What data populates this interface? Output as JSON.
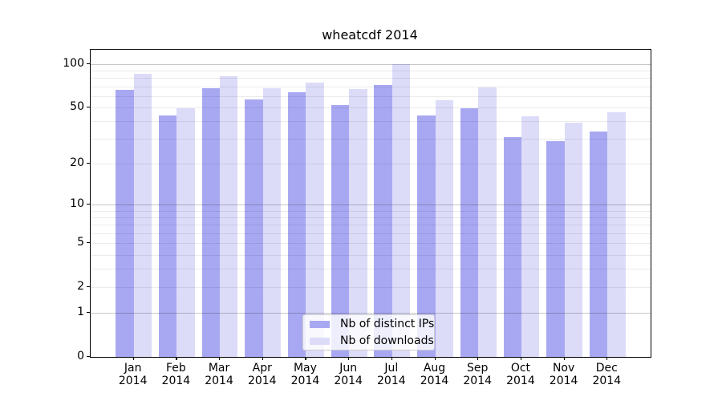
{
  "chart_data": {
    "type": "bar",
    "title": "wheatcdf 2014",
    "categories": [
      "Jan",
      "Feb",
      "Mar",
      "Apr",
      "May",
      "Jun",
      "Jul",
      "Aug",
      "Sep",
      "Oct",
      "Nov",
      "Dec"
    ],
    "year": "2014",
    "series": [
      {
        "name": "Nb of distinct IPs",
        "color": "#a8a8f2",
        "values": [
          66,
          44,
          68,
          57,
          64,
          52,
          71,
          44,
          49,
          31,
          29,
          34
        ]
      },
      {
        "name": "Nb of downloads",
        "color": "#dcdcf9",
        "values": [
          85,
          49,
          82,
          68,
          74,
          67,
          100,
          56,
          69,
          43,
          39,
          46
        ]
      }
    ],
    "xlabel": "",
    "ylabel": "",
    "yscale": "log1p",
    "ylim": [
      0,
      124
    ],
    "yticks": [
      0,
      1,
      2,
      5,
      10,
      20,
      50,
      100
    ],
    "grid": {
      "on": true,
      "major_lines": [
        1,
        10,
        100
      ],
      "minor_lines": [
        2,
        3,
        4,
        5,
        6,
        7,
        8,
        9,
        20,
        30,
        40,
        50,
        60,
        70,
        80,
        90
      ]
    },
    "legend_position": "lower center",
    "colors": {
      "spine": "#000000",
      "major_grid": "#c8c8c8",
      "minor_grid": "#ebebeb",
      "legend_border": "#cccccc"
    }
  }
}
